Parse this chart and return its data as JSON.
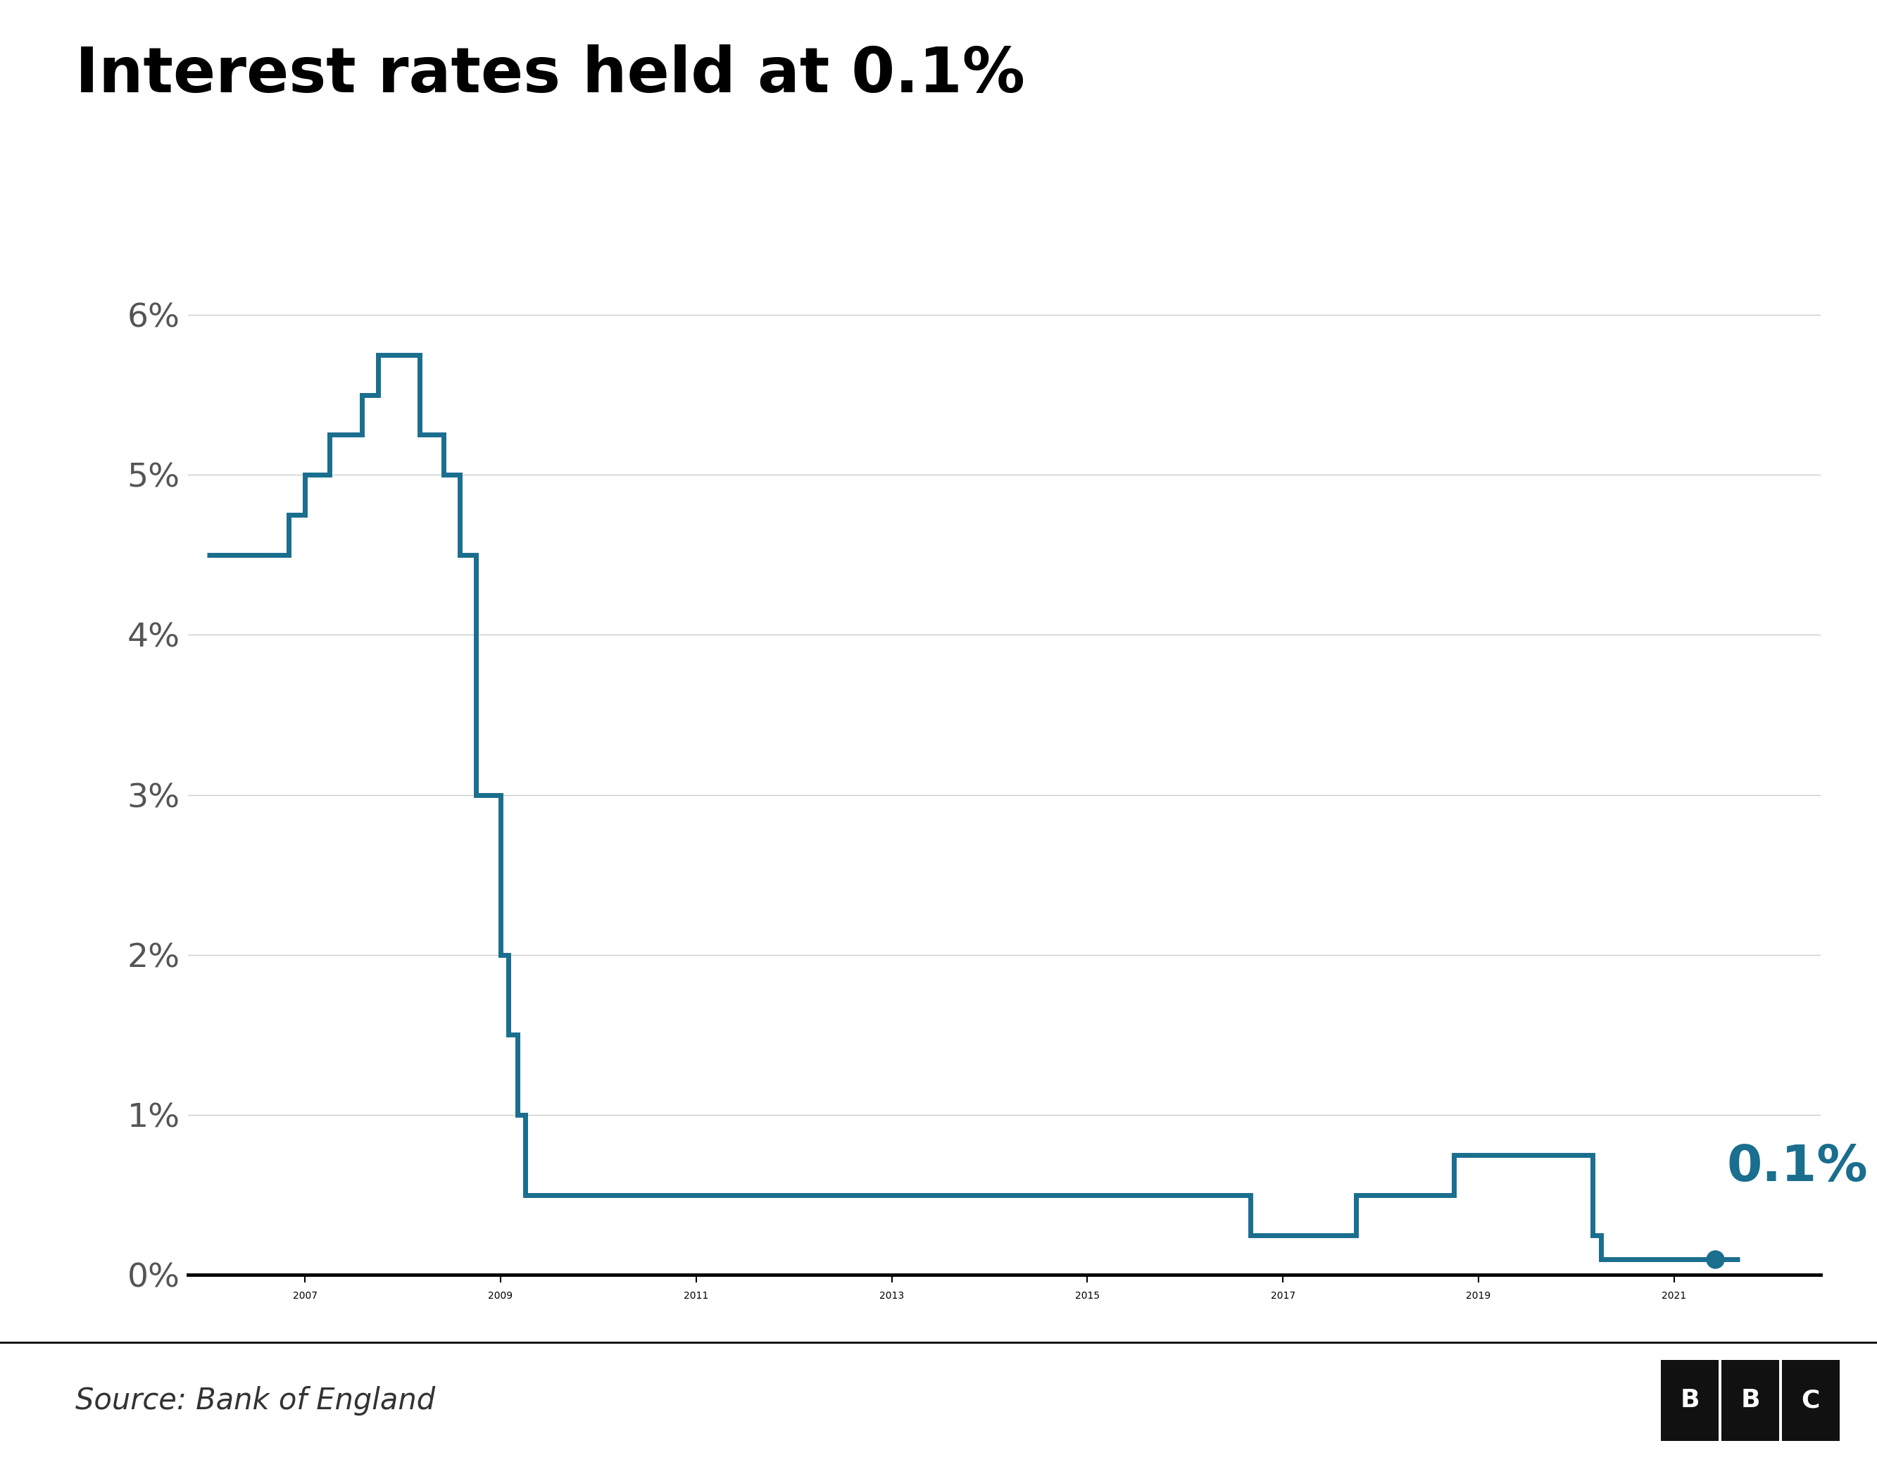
{
  "title": "Interest rates held at 0.1%",
  "source": "Source: Bank of England",
  "line_color": "#1a6e8e",
  "annotation_color": "#1a6e8e",
  "annotation_text": "0.1%",
  "background_color": "#ffffff",
  "ylabel_color": "#555555",
  "xlabel_color": "#888888",
  "yticks": [
    0,
    1,
    2,
    3,
    4,
    5,
    6
  ],
  "ytick_labels": [
    "0%",
    "1%",
    "2%",
    "3%",
    "4%",
    "5%",
    "6%"
  ],
  "xlim_start": 2005.8,
  "xlim_end": 2022.5,
  "ylim_min": -0.1,
  "ylim_max": 6.5,
  "xticks": [
    2007,
    2009,
    2011,
    2013,
    2015,
    2017,
    2019,
    2021
  ],
  "data_x": [
    2006.0,
    2006.5,
    2006.83,
    2007.0,
    2007.25,
    2007.58,
    2007.75,
    2008.0,
    2008.17,
    2008.42,
    2008.58,
    2008.75,
    2009.0,
    2009.08,
    2009.17,
    2009.25,
    2009.42,
    2016.67,
    2016.92,
    2017.75,
    2018.08,
    2018.75,
    2019.0,
    2019.92,
    2020.17,
    2020.25,
    2021.67
  ],
  "data_y": [
    4.5,
    4.5,
    4.75,
    5.0,
    5.25,
    5.5,
    5.75,
    5.75,
    5.25,
    5.0,
    4.5,
    3.0,
    2.0,
    1.5,
    1.0,
    0.5,
    0.5,
    0.25,
    0.25,
    0.5,
    0.5,
    0.75,
    0.75,
    0.75,
    0.25,
    0.1,
    0.1
  ],
  "dot_x": 2021.42,
  "dot_y": 0.1,
  "title_fontsize": 64,
  "tick_fontsize": 34,
  "source_fontsize": 30,
  "annotation_fontsize": 52,
  "line_width": 5.0,
  "grid_color": "#cccccc",
  "grid_linewidth": 1.0,
  "spine_linewidth": 3.5,
  "dot_size": 18,
  "bbc_box_color": "#111111"
}
